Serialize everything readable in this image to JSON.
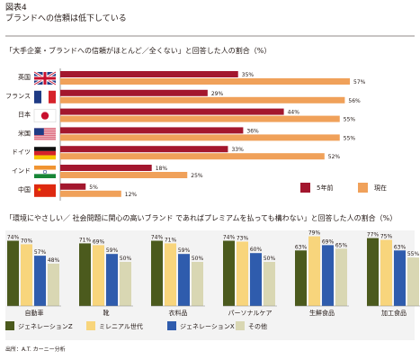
{
  "header": {
    "figure_label": "図表4",
    "title": "ブランドへの信頼は低下している"
  },
  "source": "出所：A.T. カーニー分析",
  "chart_data": [
    {
      "type": "bar",
      "orientation": "horizontal",
      "title": "「大手企業・ブランドへの信頼がほとんど／全くない」と回答した人の割合（%）",
      "categories": [
        "英国",
        "フランス",
        "日本",
        "米国",
        "ドイツ",
        "インド",
        "中国"
      ],
      "flag_icons": [
        "uk-flag-icon",
        "france-flag-icon",
        "japan-flag-icon",
        "usa-flag-icon",
        "germany-flag-icon",
        "india-flag-icon",
        "china-flag-icon"
      ],
      "series": [
        {
          "name": "5年前",
          "color": "#a3172e",
          "values": [
            35,
            29,
            44,
            36,
            33,
            18,
            5
          ]
        },
        {
          "name": "現在",
          "color": "#f0a15a",
          "values": [
            57,
            56,
            55,
            55,
            52,
            25,
            12
          ]
        }
      ],
      "value_suffix": "%",
      "legend_position": "bottom-right"
    },
    {
      "type": "bar",
      "orientation": "vertical",
      "title": "「環境にやさしい／ 社会問題に関心の高いブランド であればプレミアムを払っても構わない」と回答した人の割合（%）",
      "categories": [
        "自動車",
        "靴",
        "衣料品",
        "パーソナルケア",
        "生鮮食品",
        "加工食品"
      ],
      "series": [
        {
          "name": "ジェネレーションZ",
          "color": "#4b5a1d",
          "values": [
            74,
            71,
            74,
            74,
            63,
            77
          ]
        },
        {
          "name": "ミレニアル世代",
          "color": "#f8d57c",
          "values": [
            70,
            69,
            71,
            73,
            79,
            75
          ]
        },
        {
          "name": "ジェネレーションX",
          "color": "#2f5cad",
          "values": [
            57,
            59,
            59,
            60,
            69,
            63
          ]
        },
        {
          "name": "その他",
          "color": "#d9d7b3",
          "values": [
            48,
            50,
            50,
            50,
            65,
            55
          ]
        }
      ],
      "value_suffix": "%",
      "legend_position": "bottom"
    }
  ]
}
